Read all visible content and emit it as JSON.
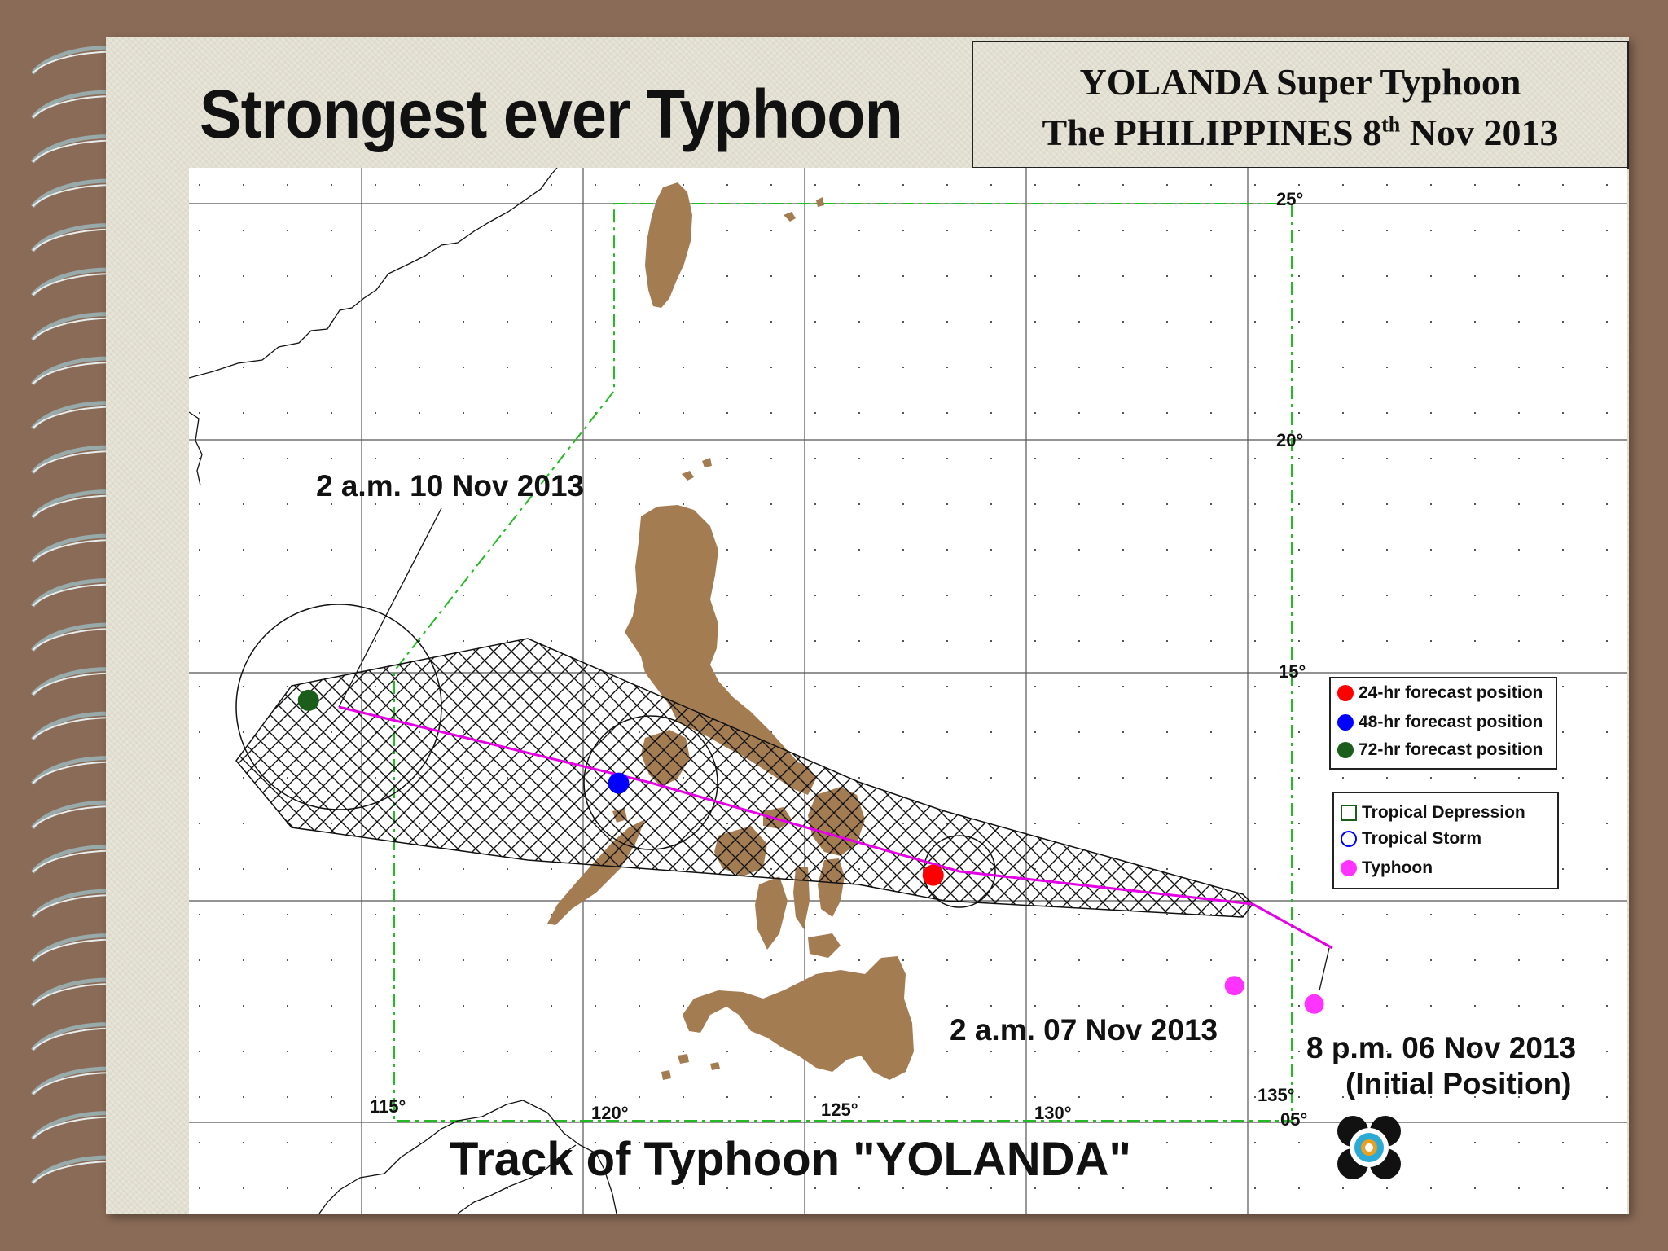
{
  "header": {
    "title": "Strongest  ever Typhoon",
    "box_line1": "YOLANDA Super Typhoon",
    "box_line2_pre": "The PHILIPPINES  8",
    "box_line2_sup": "th",
    "box_line2_post": " Nov 2013"
  },
  "map": {
    "bottom_title": "Track of  Typhoon \"YOLANDA\"",
    "longitude_labels": [
      "115°",
      "120°",
      "125°",
      "130°",
      "135°"
    ],
    "latitude_labels": [
      "25°",
      "20°",
      "15°",
      "05°"
    ],
    "land_color": "#a47c52",
    "track_color": "#e400e4",
    "annotations": {
      "day3": "2 a.m. 10 Nov 2013",
      "day0": "2 a.m. 07 Nov 2013",
      "initial_time": "8 p.m. 06 Nov 2013",
      "initial_note": "(Initial Position)"
    },
    "track_points": [
      {
        "label": "8 p.m. 06 Nov 2013",
        "lon": 136.5,
        "lat": 7.8,
        "kind": "typhoon",
        "color": "#ff33ff"
      },
      {
        "label": "2 a.m. 07 Nov 2013",
        "lon": 134.7,
        "lat": 8.2,
        "kind": "typhoon",
        "color": "#ff33ff"
      },
      {
        "label": "24-hr",
        "lon": 127.9,
        "lat": 10.6,
        "kind": "forecast",
        "color": "#ff0000"
      },
      {
        "label": "48-hr",
        "lon": 120.8,
        "lat": 12.6,
        "kind": "forecast",
        "color": "#0000ff"
      },
      {
        "label": "72-hr",
        "lon": 113.8,
        "lat": 14.4,
        "kind": "forecast",
        "color": "#1b5e1b"
      }
    ]
  },
  "legend_forecast": {
    "items": [
      {
        "label": "24-hr forecast position",
        "color": "#ff0000"
      },
      {
        "label": "48-hr forecast position",
        "color": "#0000ff"
      },
      {
        "label": "72-hr forecast position",
        "color": "#1b5e1b"
      }
    ]
  },
  "legend_category": {
    "items": [
      {
        "label": "Tropical Depression",
        "symbol": "green-square"
      },
      {
        "label": "Tropical Storm",
        "symbol": "blue-circle"
      },
      {
        "label": "Typhoon",
        "symbol": "magenta-dot"
      }
    ]
  },
  "logo": {
    "name": "pagasa-logo"
  }
}
